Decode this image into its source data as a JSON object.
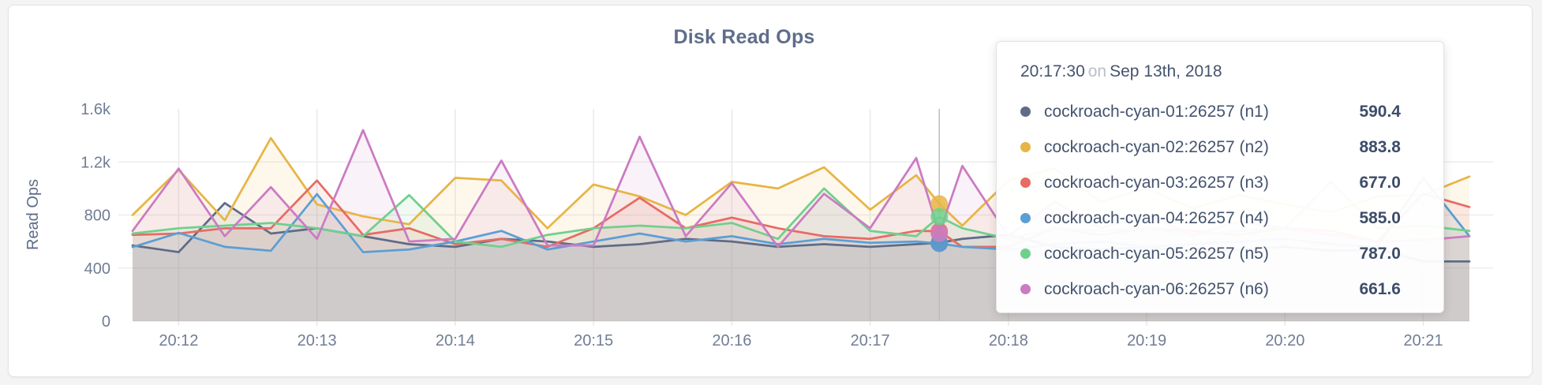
{
  "page": {
    "background": "#f4f4f4",
    "card_background": "#ffffff"
  },
  "chart": {
    "title": "Disk Read Ops",
    "y_axis_label": "Read Ops"
  },
  "tooltip": {
    "time": "20:17:30",
    "connector": "on",
    "date": "Sep 13th, 2018",
    "rows": [
      {
        "label": "cockroach-cyan-01:26257 (n1)",
        "value": "590.4",
        "color": "#5f6c87"
      },
      {
        "label": "cockroach-cyan-02:26257 (n2)",
        "value": "883.8",
        "color": "#e7b545"
      },
      {
        "label": "cockroach-cyan-03:26257 (n3)",
        "value": "677.0",
        "color": "#e66c64"
      },
      {
        "label": "cockroach-cyan-04:26257 (n4)",
        "value": "585.0",
        "color": "#5b9fd4"
      },
      {
        "label": "cockroach-cyan-05:26257 (n5)",
        "value": "787.0",
        "color": "#6fd08c"
      },
      {
        "label": "cockroach-cyan-06:26257 (n6)",
        "value": "661.6",
        "color": "#cb7bc3"
      }
    ]
  },
  "chart_data": {
    "type": "line",
    "title": "Disk Read Ops",
    "xlabel": "",
    "ylabel": "Read Ops",
    "ylim": [
      0,
      1600
    ],
    "grid": true,
    "legend_position": "hover-tooltip",
    "x_unit": "seconds after 20:11:40 on Sep 13th, 2018",
    "x": [
      0,
      20,
      40,
      60,
      80,
      100,
      120,
      140,
      160,
      180,
      200,
      220,
      240,
      260,
      280,
      300,
      320,
      340,
      350,
      360,
      380,
      400,
      420,
      440,
      460,
      480,
      500,
      520,
      540,
      560,
      580
    ],
    "x_ticks": [
      {
        "t": 20,
        "label": "20:12"
      },
      {
        "t": 80,
        "label": "20:13"
      },
      {
        "t": 140,
        "label": "20:14"
      },
      {
        "t": 200,
        "label": "20:15"
      },
      {
        "t": 260,
        "label": "20:16"
      },
      {
        "t": 320,
        "label": "20:17"
      },
      {
        "t": 380,
        "label": "20:18"
      },
      {
        "t": 440,
        "label": "20:19"
      },
      {
        "t": 500,
        "label": "20:20"
      },
      {
        "t": 560,
        "label": "20:21"
      }
    ],
    "y_ticks": [
      {
        "v": 0,
        "label": "0"
      },
      {
        "v": 400,
        "label": "400"
      },
      {
        "v": 800,
        "label": "800"
      },
      {
        "v": 1200,
        "label": "1.2k"
      },
      {
        "v": 1600,
        "label": "1.6k"
      }
    ],
    "hover": {
      "t": 350,
      "time": "20:17:30",
      "values": [
        590.4,
        883.8,
        677.0,
        585.0,
        787.0,
        661.6
      ]
    },
    "series": [
      {
        "id": "n1",
        "name": "cockroach-cyan-01:26257 (n1)",
        "color": "#5f6c87",
        "values": [
          570,
          520,
          890,
          660,
          700,
          640,
          580,
          560,
          620,
          600,
          560,
          580,
          620,
          600,
          560,
          580,
          560,
          580,
          590.4,
          620,
          650,
          560,
          540,
          560,
          520,
          540,
          560,
          530,
          540,
          450,
          450
        ]
      },
      {
        "id": "n2",
        "name": "cockroach-cyan-02:26257 (n2)",
        "color": "#e7b545",
        "values": [
          800,
          1140,
          760,
          1380,
          880,
          790,
          730,
          1080,
          1060,
          700,
          1030,
          940,
          800,
          1050,
          1000,
          1160,
          840,
          1100,
          883.8,
          720,
          1060,
          1150,
          900,
          1000,
          850,
          950,
          880,
          820,
          940,
          950,
          1090
        ]
      },
      {
        "id": "n3",
        "name": "cockroach-cyan-03:26257 (n3)",
        "color": "#e66c64",
        "values": [
          650,
          660,
          700,
          700,
          1060,
          650,
          700,
          580,
          620,
          560,
          700,
          930,
          700,
          780,
          700,
          640,
          620,
          680,
          677,
          560,
          560,
          700,
          650,
          700,
          680,
          650,
          700,
          680,
          600,
          960,
          860
        ]
      },
      {
        "id": "n4",
        "name": "cockroach-cyan-04:26257 (n4)",
        "color": "#5b9fd4",
        "values": [
          558,
          665,
          560,
          530,
          958,
          520,
          540,
          600,
          680,
          540,
          600,
          660,
          600,
          640,
          580,
          620,
          590,
          600,
          585,
          560,
          540,
          580,
          600,
          560,
          580,
          600,
          620,
          580,
          560,
          1080,
          640
        ]
      },
      {
        "id": "n5",
        "name": "cockroach-cyan-05:26257 (n5)",
        "color": "#6fd08c",
        "values": [
          660,
          700,
          720,
          740,
          700,
          640,
          950,
          600,
          560,
          650,
          700,
          720,
          700,
          740,
          620,
          1000,
          680,
          640,
          787,
          700,
          620,
          700,
          680,
          700,
          650,
          680,
          700,
          1050,
          700,
          720,
          680
        ]
      },
      {
        "id": "n6",
        "name": "cockroach-cyan-06:26257 (n6)",
        "color": "#cb7bc3",
        "values": [
          680,
          1150,
          640,
          1010,
          620,
          1440,
          600,
          620,
          1210,
          570,
          570,
          1390,
          640,
          1040,
          560,
          960,
          700,
          1230,
          661.6,
          1170,
          640,
          900,
          700,
          800,
          650,
          750,
          700,
          650,
          600,
          610,
          640
        ]
      }
    ],
    "style": {
      "grid_color": "#e9e9e9",
      "hover_line_color": "#bdbdbd",
      "axis_tick_color": "#717d94",
      "area_fill_opacity": 0.1
    }
  }
}
